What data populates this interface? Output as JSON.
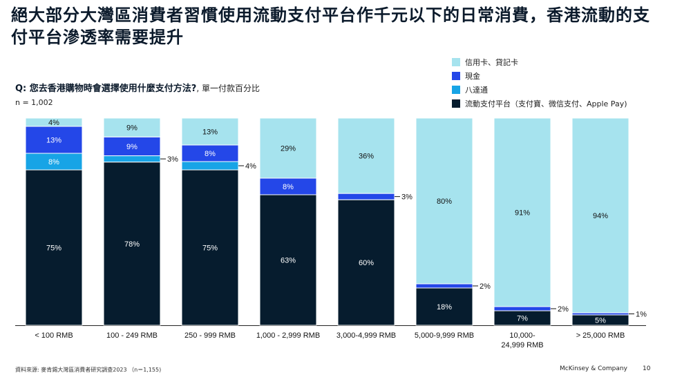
{
  "title": "絕大部分大灣區消費者習慣使用流動支付平台作千元以下的日常消費，香港流動的支付平台滲透率需要提升",
  "question": {
    "prefix": "Q: 您去香港購物時會選擇使用什麼支付方法?",
    "suffix": ", 單一付款百分比"
  },
  "sample_size": "n = 1,002",
  "chart_data": {
    "type": "bar",
    "stacked": true,
    "unit": "%",
    "categories": [
      "< 100 RMB",
      "100 - 249 RMB",
      "250 - 999 RMB",
      "1,000 - 2,999 RMB",
      "3,000-4,999 RMB",
      "5,000-9,999 RMB",
      "10,000-\n24,999 RMB",
      "> 25,000 RMB"
    ],
    "series": [
      {
        "name": "流動支付平台（支付寶、微信支付、Apple Pay)",
        "color": "#061c2e",
        "label_color": "#ffffff",
        "values": [
          75,
          78,
          75,
          63,
          60,
          18,
          7,
          5
        ]
      },
      {
        "name": "八達通",
        "color": "#17a4e6",
        "label_color": "#ffffff",
        "values": [
          8,
          3,
          4,
          0,
          0,
          0,
          0,
          0
        ]
      },
      {
        "name": "現金",
        "color": "#2447e8",
        "label_color": "#ffffff",
        "values": [
          13,
          9,
          8,
          8,
          3,
          2,
          2,
          1
        ]
      },
      {
        "name": "信用卡、貸記卡",
        "color": "#a6e3ee",
        "label_color": "#111111",
        "values": [
          4,
          9,
          13,
          29,
          36,
          80,
          91,
          94
        ]
      }
    ],
    "data_labels": [
      [
        "75%",
        "8%",
        "13%",
        "4%"
      ],
      [
        "78%",
        "3%",
        "9%",
        "9%"
      ],
      [
        "75%",
        "4%",
        "8%",
        "13%"
      ],
      [
        "63%",
        "",
        "8%",
        "29%"
      ],
      [
        "60%",
        "",
        "3%",
        "36%"
      ],
      [
        "18%",
        "",
        "2%",
        "80%"
      ],
      [
        "7%",
        "",
        "2%",
        "91%"
      ],
      [
        "5%",
        "",
        "1%",
        "94%"
      ]
    ],
    "outside_labels": [
      {
        "category": 1,
        "series": 1,
        "text": "3%"
      },
      {
        "category": 2,
        "series": 1,
        "text": "4%"
      },
      {
        "category": 4,
        "series": 2,
        "text": "3%"
      },
      {
        "category": 5,
        "series": 2,
        "text": "2%"
      },
      {
        "category": 6,
        "series": 2,
        "text": "2%"
      },
      {
        "category": 7,
        "series": 2,
        "text": "1%"
      }
    ],
    "legend_order": [
      3,
      2,
      1,
      0
    ],
    "legend_position": "top-right",
    "ylim": [
      0,
      100
    ],
    "grid": false
  },
  "footer": {
    "source": "資料來源: 麥肯錫大灣區消費者研究調查2023 （n＝1,155)",
    "company": "McKinsey & Company",
    "page": "10"
  }
}
